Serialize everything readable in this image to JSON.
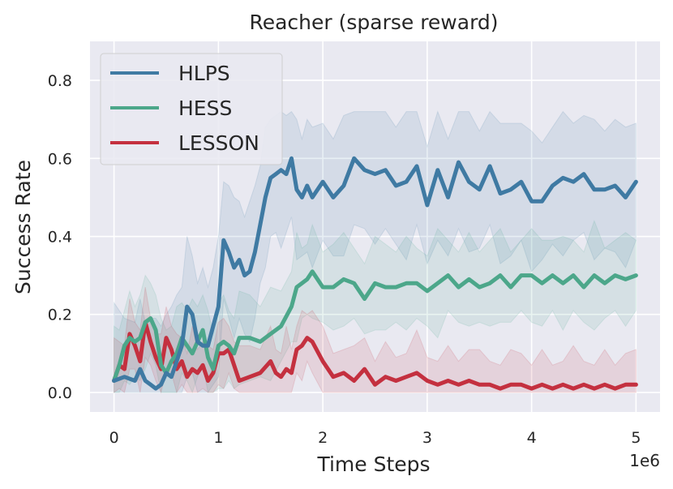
{
  "chart_data": {
    "type": "line",
    "title": "Reacher (sparse reward)",
    "xlabel": "Time Steps",
    "ylabel": "Success Rate",
    "x_offset_label": "1e6",
    "xlim": [
      -0.23,
      5.23
    ],
    "ylim": [
      -0.05,
      0.9
    ],
    "xticks": [
      0,
      1,
      2,
      3,
      4,
      5
    ],
    "xtick_labels": [
      "0",
      "1",
      "2",
      "3",
      "4",
      "5"
    ],
    "yticks": [
      0.0,
      0.2,
      0.4,
      0.6,
      0.8
    ],
    "ytick_labels": [
      "0.0",
      "0.2",
      "0.4",
      "0.6",
      "0.8"
    ],
    "grid": true,
    "legend": "top-left",
    "colors": {
      "background": "#e9e9f1",
      "grid": "#ffffff",
      "text": "#262626"
    },
    "series": [
      {
        "name": "HLPS",
        "color": "#3f7aa3",
        "x": [
          0,
          0.1,
          0.2,
          0.25,
          0.3,
          0.35,
          0.4,
          0.45,
          0.5,
          0.55,
          0.6,
          0.65,
          0.7,
          0.75,
          0.8,
          0.85,
          0.9,
          0.95,
          1.0,
          1.05,
          1.1,
          1.15,
          1.2,
          1.25,
          1.3,
          1.35,
          1.4,
          1.45,
          1.5,
          1.55,
          1.6,
          1.65,
          1.7,
          1.75,
          1.8,
          1.85,
          1.9,
          2.0,
          2.1,
          2.2,
          2.3,
          2.4,
          2.5,
          2.6,
          2.7,
          2.8,
          2.9,
          3.0,
          3.1,
          3.2,
          3.3,
          3.4,
          3.5,
          3.6,
          3.7,
          3.8,
          3.9,
          4.0,
          4.1,
          4.2,
          4.3,
          4.4,
          4.5,
          4.6,
          4.7,
          4.8,
          4.9,
          5.0
        ],
        "values": [
          0.03,
          0.04,
          0.03,
          0.06,
          0.03,
          0.02,
          0.01,
          0.02,
          0.05,
          0.04,
          0.08,
          0.12,
          0.22,
          0.2,
          0.13,
          0.12,
          0.12,
          0.17,
          0.22,
          0.39,
          0.36,
          0.32,
          0.34,
          0.3,
          0.31,
          0.36,
          0.43,
          0.5,
          0.55,
          0.56,
          0.57,
          0.56,
          0.6,
          0.52,
          0.5,
          0.53,
          0.5,
          0.54,
          0.5,
          0.53,
          0.6,
          0.57,
          0.56,
          0.57,
          0.53,
          0.54,
          0.58,
          0.48,
          0.57,
          0.5,
          0.59,
          0.54,
          0.52,
          0.58,
          0.51,
          0.52,
          0.54,
          0.49,
          0.49,
          0.53,
          0.55,
          0.54,
          0.56,
          0.52,
          0.52,
          0.53,
          0.5,
          0.54
        ]
      },
      {
        "name": "HESS",
        "color": "#4ca78a",
        "x": [
          0,
          0.05,
          0.1,
          0.15,
          0.2,
          0.25,
          0.3,
          0.35,
          0.4,
          0.45,
          0.5,
          0.55,
          0.6,
          0.65,
          0.7,
          0.75,
          0.8,
          0.85,
          0.9,
          0.95,
          1.0,
          1.05,
          1.1,
          1.15,
          1.2,
          1.3,
          1.4,
          1.5,
          1.6,
          1.7,
          1.75,
          1.8,
          1.85,
          1.9,
          2.0,
          2.1,
          2.2,
          2.3,
          2.4,
          2.5,
          2.6,
          2.7,
          2.8,
          2.9,
          3.0,
          3.1,
          3.2,
          3.3,
          3.4,
          3.5,
          3.6,
          3.7,
          3.8,
          3.9,
          4.0,
          4.1,
          4.2,
          4.3,
          4.4,
          4.5,
          4.6,
          4.7,
          4.8,
          4.9,
          5.0
        ],
        "values": [
          0.03,
          0.07,
          0.12,
          0.14,
          0.13,
          0.14,
          0.18,
          0.19,
          0.16,
          0.07,
          0.05,
          0.08,
          0.1,
          0.14,
          0.12,
          0.1,
          0.13,
          0.16,
          0.09,
          0.06,
          0.12,
          0.13,
          0.12,
          0.1,
          0.14,
          0.14,
          0.13,
          0.15,
          0.17,
          0.22,
          0.27,
          0.28,
          0.29,
          0.31,
          0.27,
          0.27,
          0.29,
          0.28,
          0.24,
          0.28,
          0.27,
          0.27,
          0.28,
          0.28,
          0.26,
          0.28,
          0.3,
          0.27,
          0.29,
          0.27,
          0.28,
          0.3,
          0.27,
          0.3,
          0.3,
          0.28,
          0.3,
          0.28,
          0.3,
          0.27,
          0.3,
          0.28,
          0.3,
          0.29,
          0.3
        ]
      },
      {
        "name": "LESSON",
        "color": "#c4303f",
        "x": [
          0,
          0.05,
          0.1,
          0.15,
          0.2,
          0.25,
          0.3,
          0.35,
          0.4,
          0.45,
          0.5,
          0.55,
          0.6,
          0.65,
          0.7,
          0.75,
          0.8,
          0.85,
          0.9,
          0.95,
          1.0,
          1.05,
          1.1,
          1.15,
          1.2,
          1.3,
          1.4,
          1.5,
          1.55,
          1.6,
          1.65,
          1.7,
          1.75,
          1.8,
          1.85,
          1.9,
          2.0,
          2.1,
          2.2,
          2.3,
          2.4,
          2.5,
          2.6,
          2.7,
          2.8,
          2.9,
          3.0,
          3.1,
          3.2,
          3.3,
          3.4,
          3.5,
          3.6,
          3.7,
          3.8,
          3.9,
          4.0,
          4.1,
          4.2,
          4.3,
          4.4,
          4.5,
          4.6,
          4.7,
          4.8,
          4.9,
          5.0
        ],
        "values": [
          0.03,
          0.07,
          0.06,
          0.15,
          0.12,
          0.08,
          0.18,
          0.13,
          0.09,
          0.06,
          0.14,
          0.11,
          0.06,
          0.08,
          0.04,
          0.06,
          0.05,
          0.07,
          0.03,
          0.05,
          0.1,
          0.1,
          0.11,
          0.07,
          0.03,
          0.04,
          0.05,
          0.08,
          0.05,
          0.04,
          0.06,
          0.05,
          0.11,
          0.12,
          0.14,
          0.13,
          0.08,
          0.04,
          0.05,
          0.03,
          0.06,
          0.02,
          0.04,
          0.03,
          0.04,
          0.05,
          0.03,
          0.02,
          0.03,
          0.02,
          0.03,
          0.02,
          0.02,
          0.01,
          0.02,
          0.02,
          0.01,
          0.02,
          0.01,
          0.02,
          0.01,
          0.02,
          0.01,
          0.02,
          0.01,
          0.02,
          0.02
        ]
      }
    ]
  }
}
